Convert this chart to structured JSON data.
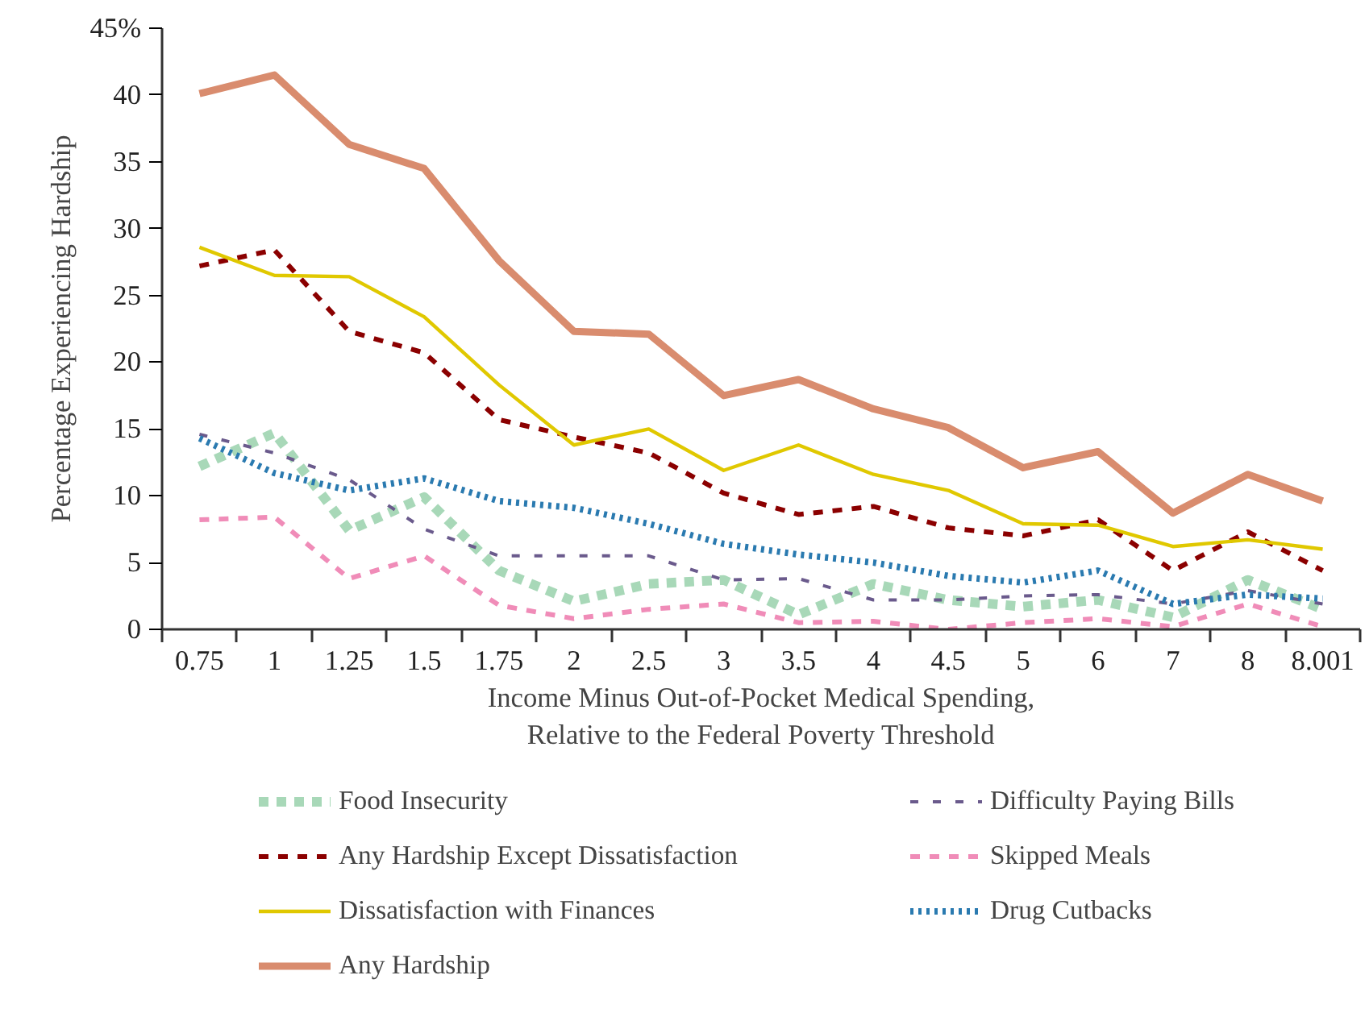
{
  "chart_data": {
    "type": "line",
    "xlabel": "Income Minus Out-of-Pocket Medical Spending,\nRelative to the Federal Poverty Threshold",
    "ylabel": "Percentage Experiencing Hardship",
    "categories": [
      "0.75",
      "1",
      "1.25",
      "1.5",
      "1.75",
      "2",
      "2.5",
      "3",
      "3.5",
      "4",
      "4.5",
      "5",
      "6",
      "7",
      "8",
      "8.001"
    ],
    "ylim": [
      0,
      45
    ],
    "yticks": [
      0,
      5,
      10,
      15,
      20,
      25,
      30,
      35,
      40,
      {
        "value": 45,
        "label": "45%"
      }
    ],
    "grid": false,
    "legend": "bottom",
    "series": [
      {
        "name": "Food Insecurity",
        "color": "#a8d8b8",
        "line_style": "dotted",
        "values": [
          12.2,
          14.7,
          7.4,
          9.9,
          4.4,
          2.1,
          3.4,
          3.7,
          1.1,
          3.4,
          2.2,
          1.7,
          2.2,
          0.9,
          3.7,
          1.5
        ]
      },
      {
        "name": "Difficulty Paying Bills",
        "color": "#6a5a8c",
        "line_style": "dashed",
        "values": [
          14.6,
          13.2,
          11.2,
          7.5,
          5.5,
          5.5,
          5.5,
          3.7,
          3.8,
          2.2,
          2.2,
          2.5,
          2.6,
          1.9,
          2.9,
          1.9
        ]
      },
      {
        "name": "Any Hardship Except Dissatisfaction",
        "color": "#8b0000",
        "line_style": "dashed",
        "values": [
          27.2,
          28.4,
          22.3,
          20.7,
          15.7,
          14.4,
          13.2,
          10.2,
          8.6,
          9.2,
          7.6,
          7.0,
          8.2,
          4.4,
          7.3,
          4.4
        ]
      },
      {
        "name": "Skipped Meals",
        "color": "#f08cb8",
        "line_style": "dashed",
        "values": [
          8.2,
          8.4,
          3.8,
          5.5,
          1.8,
          0.8,
          1.5,
          1.9,
          0.5,
          0.6,
          0,
          0.5,
          0.8,
          0.2,
          1.9,
          0.2
        ]
      },
      {
        "name": "Dissatisfaction with Finances",
        "color": "#e0c800",
        "line_style": "solid",
        "values": [
          28.6,
          26.5,
          26.4,
          23.4,
          18.3,
          13.8,
          15.0,
          11.9,
          13.8,
          11.6,
          10.4,
          7.9,
          7.8,
          6.2,
          6.7,
          6.0
        ]
      },
      {
        "name": "Drug Cutbacks",
        "color": "#2a7ab0",
        "line_style": "dotted",
        "values": [
          14.3,
          11.7,
          10.4,
          11.3,
          9.6,
          9.1,
          7.9,
          6.4,
          5.6,
          5.0,
          4.0,
          3.5,
          4.4,
          1.9,
          2.6,
          2.3
        ]
      },
      {
        "name": "Any Hardship",
        "color": "#d98c6e",
        "line_style": "solid",
        "values": [
          40.1,
          41.5,
          36.3,
          34.5,
          27.6,
          22.3,
          22.1,
          17.5,
          18.7,
          16.5,
          15.1,
          12.1,
          13.3,
          8.7,
          11.6,
          9.6
        ]
      }
    ]
  }
}
